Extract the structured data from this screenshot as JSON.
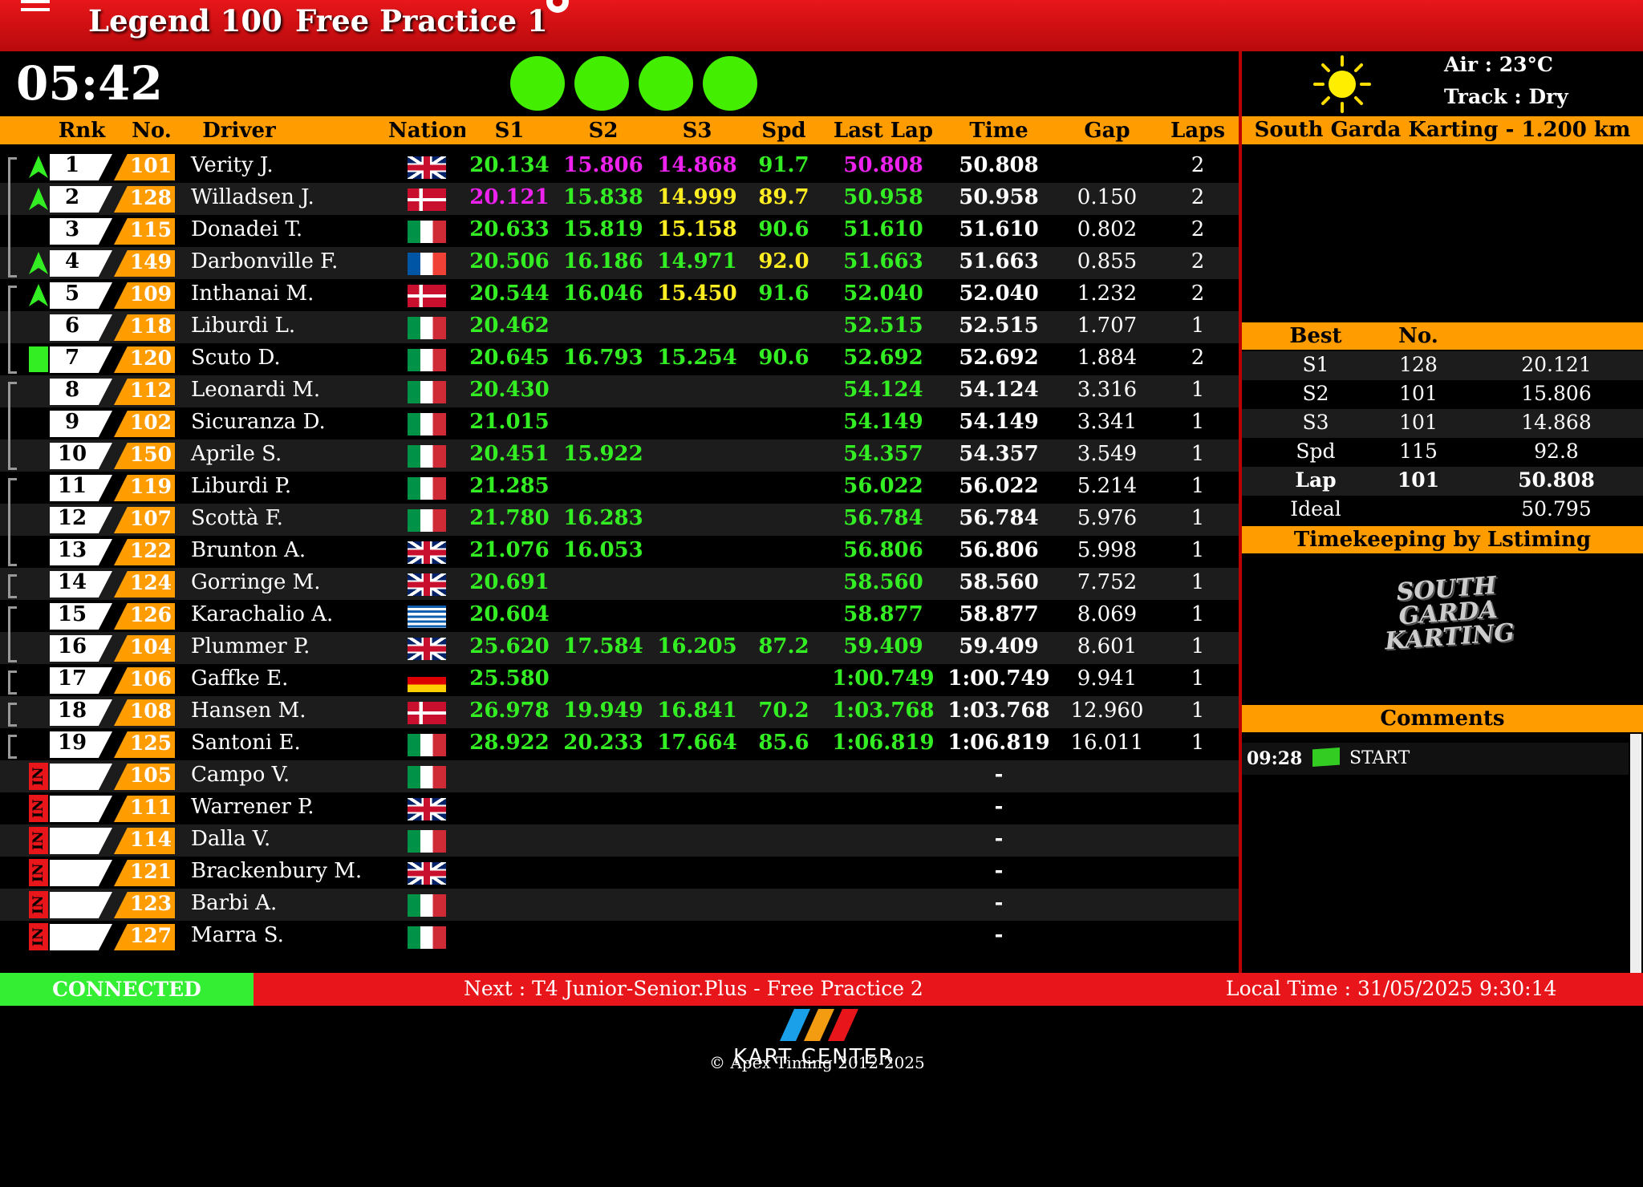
{
  "header": {
    "title": "Legend 100",
    "session": "Free Practice 1"
  },
  "timer": "05:42",
  "weather": {
    "air": "Air : 23°C",
    "track": "Track : Dry"
  },
  "track_name": "South Garda Karting - 1.200 km",
  "table": {
    "columns": [
      "Rnk",
      "No.",
      "Driver",
      "Nation",
      "S1",
      "S2",
      "S3",
      "Spd",
      "Last Lap",
      "Time",
      "Gap",
      "Laps"
    ],
    "rows": [
      {
        "rank": 1,
        "no": "101",
        "driver": "Verity J.",
        "s1": "20.134",
        "s2": "15.806",
        "s3": "14.868",
        "spd": "91.7",
        "last": "50.808",
        "time": "50.808",
        "laps": 2
      },
      {
        "rank": 2,
        "no": "128",
        "driver": "Willadsen J.",
        "s1": "20.121",
        "s2": "15.838",
        "s3": "14.999",
        "spd": "89.7",
        "last": "50.958",
        "time": "50.958",
        "gap": "0.150",
        "laps": 2
      },
      {
        "rank": 3,
        "no": "115",
        "driver": "Donadei T.",
        "s1": "20.633",
        "s2": "15.819",
        "s3": "15.158",
        "spd": "90.6",
        "last": "51.610",
        "time": "51.610",
        "gap": "0.802",
        "laps": 2
      },
      {
        "rank": 4,
        "no": "149",
        "driver": "Darbonville F.",
        "s1": "20.506",
        "s2": "16.186",
        "s3": "14.971",
        "spd": "92.0",
        "last": "51.663",
        "time": "51.663",
        "gap": "0.855",
        "laps": 2
      },
      {
        "rank": 5,
        "no": "109",
        "driver": "Inthanai M.",
        "s1": "20.544",
        "s2": "16.046",
        "s3": "15.450",
        "spd": "91.6",
        "last": "52.040",
        "time": "52.040",
        "gap": "1.232",
        "laps": 2
      },
      {
        "rank": 6,
        "no": "118",
        "driver": "Liburdi L.",
        "s1": "20.462",
        "last": "52.515",
        "time": "52.515",
        "gap": "1.707",
        "laps": 1
      },
      {
        "rank": 7,
        "no": "120",
        "driver": "Scuto D.",
        "s1": "20.645",
        "s2": "16.793",
        "s3": "15.254",
        "spd": "90.6",
        "last": "52.692",
        "time": "52.692",
        "gap": "1.884",
        "laps": 2
      },
      {
        "rank": 8,
        "no": "112",
        "driver": "Leonardi M.",
        "s1": "20.430",
        "last": "54.124",
        "time": "54.124",
        "gap": "3.316",
        "laps": 1
      },
      {
        "rank": 9,
        "no": "102",
        "driver": "Sicuranza D.",
        "s1": "21.015",
        "last": "54.149",
        "time": "54.149",
        "gap": "3.341",
        "laps": 1
      },
      {
        "rank": 10,
        "no": "150",
        "driver": "Aprile S.",
        "s1": "20.451",
        "s2": "15.922",
        "last": "54.357",
        "time": "54.357",
        "gap": "3.549",
        "laps": 1
      },
      {
        "rank": 11,
        "no": "119",
        "driver": "Liburdi P.",
        "s1": "21.285",
        "last": "56.022",
        "time": "56.022",
        "gap": "5.214",
        "laps": 1
      },
      {
        "rank": 12,
        "no": "107",
        "driver": "Scottà F.",
        "s1": "21.780",
        "s2": "16.283",
        "last": "56.784",
        "time": "56.784",
        "gap": "5.976",
        "laps": 1
      },
      {
        "rank": 13,
        "no": "122",
        "driver": "Brunton A.",
        "s1": "21.076",
        "s2": "16.053",
        "last": "56.806",
        "time": "56.806",
        "gap": "5.998",
        "laps": 1
      },
      {
        "rank": 14,
        "no": "124",
        "driver": "Gorringe M.",
        "s1": "20.691",
        "last": "58.560",
        "time": "58.560",
        "gap": "7.752",
        "laps": 1
      },
      {
        "rank": 15,
        "no": "126",
        "driver": "Karachalio A.",
        "s1": "20.604",
        "last": "58.877",
        "time": "58.877",
        "gap": "8.069",
        "laps": 1
      },
      {
        "rank": 16,
        "no": "104",
        "driver": "Plummer P.",
        "s1": "25.620",
        "s2": "17.584",
        "s3": "16.205",
        "spd": "87.2",
        "last": "59.409",
        "time": "59.409",
        "gap": "8.601",
        "laps": 1
      },
      {
        "rank": 17,
        "no": "106",
        "driver": "Gaffke E.",
        "s1": "25.580",
        "last": "1:00.749",
        "time": "1:00.749",
        "gap": "9.941",
        "laps": 1
      },
      {
        "rank": 18,
        "no": "108",
        "driver": "Hansen M.",
        "s1": "26.978",
        "s2": "19.949",
        "s3": "16.841",
        "spd": "70.2",
        "last": "1:03.768",
        "time": "1:03.768",
        "gap": "12.960",
        "laps": 1
      },
      {
        "rank": 19,
        "no": "125",
        "driver": "Santoni E.",
        "s1": "28.922",
        "s2": "20.233",
        "s3": "17.664",
        "spd": "85.6",
        "last": "1:06.819",
        "time": "1:06.819",
        "gap": "16.011",
        "laps": 1
      },
      {
        "status": "IN",
        "no": "105",
        "driver": "Campo V.",
        "time": "-"
      },
      {
        "status": "IN",
        "no": "111",
        "driver": "Warrener P.",
        "time": "-"
      },
      {
        "status": "IN",
        "no": "114",
        "driver": "Dalla V.",
        "time": "-"
      },
      {
        "status": "IN",
        "no": "121",
        "driver": "Brackenbury M.",
        "time": "-"
      },
      {
        "status": "IN",
        "no": "123",
        "driver": "Barbi A.",
        "time": "-"
      },
      {
        "status": "IN",
        "no": "127",
        "driver": "Marra S.",
        "time": "-"
      }
    ]
  },
  "best": {
    "columns": [
      "Best",
      "No."
    ],
    "rows": [
      {
        "label": "S1",
        "no": "128",
        "value": "20.121"
      },
      {
        "label": "S2",
        "no": "101",
        "value": "15.806"
      },
      {
        "label": "S3",
        "no": "101",
        "value": "14.868"
      },
      {
        "label": "Spd",
        "no": "115",
        "value": "92.8"
      },
      {
        "label": "Lap",
        "no": "101",
        "value": "50.808"
      },
      {
        "label": "Ideal",
        "value": "50.795"
      }
    ]
  },
  "timekeeping": "Timekeeping by Lstiming",
  "logo": "SOUTH GARDA KARTING",
  "comments": {
    "title": "Comments",
    "entries": [
      {
        "time": "09:28",
        "text": "START"
      }
    ]
  },
  "status": {
    "connection": "CONNECTED",
    "next": "Next : T4 Junior-Senior.Plus - Free Practice 2",
    "local_time": "Local Time : 31/05/2025 9:30:14"
  },
  "footer": {
    "brand": "KART CENTER",
    "copyright": "© Apex Timing 2012-2025"
  }
}
